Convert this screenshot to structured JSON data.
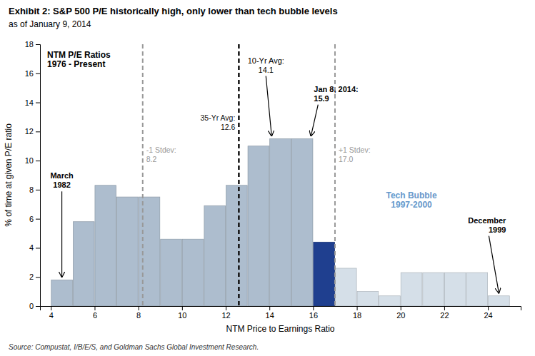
{
  "chart_data": {
    "type": "bar",
    "title": "Exhibit 2: S&P 500 P/E historically high, only lower than tech bubble levels",
    "subtitle": "as of January 9, 2014",
    "source": "Source: Compustat, I/B/E/S, and Goldman Sachs Global Investment Research.",
    "inner_label": "NTM P/E Ratios\n1976 - Present",
    "x_label": "NTM Price to Earnings Ratio",
    "y_label": "% of time at given P/E ratio",
    "x": [
      4.5,
      5.5,
      6.5,
      7.5,
      8.5,
      9.5,
      10.5,
      11.5,
      12.5,
      13.5,
      14.5,
      15.5,
      16.5,
      17.5,
      18.5,
      19.5,
      20.5,
      21.5,
      22.5,
      23.5,
      24.5
    ],
    "values": [
      1.8,
      5.8,
      8.3,
      7.5,
      7.5,
      4.6,
      4.6,
      6.9,
      8.3,
      11.0,
      11.5,
      11.5,
      4.4,
      2.6,
      1.0,
      0.7,
      2.3,
      2.3,
      2.3,
      2.3,
      0.7
    ],
    "colors": [
      "#adbdce",
      "#adbdce",
      "#adbdce",
      "#adbdce",
      "#adbdce",
      "#adbdce",
      "#adbdce",
      "#adbdce",
      "#adbdce",
      "#adbdce",
      "#adbdce",
      "#adbdce",
      "#1f3f8f",
      "#d5dfe8",
      "#d5dfe8",
      "#d5dfe8",
      "#d5dfe8",
      "#d5dfe8",
      "#d5dfe8",
      "#d5dfe8",
      "#d5dfe8"
    ],
    "xlim": [
      3.5,
      25.5
    ],
    "ylim": [
      0,
      18
    ],
    "xticks": [
      4,
      6,
      8,
      10,
      12,
      14,
      16,
      18,
      20,
      22,
      24
    ],
    "yticks": [
      0,
      2,
      4,
      6,
      8,
      10,
      12,
      14,
      16,
      18
    ],
    "grid": false,
    "reference_lines": [
      {
        "value": 12.6,
        "label": "35-Yr Avg:\n12.6",
        "color": "#111111",
        "line_style": "dashed"
      },
      {
        "value": 8.2,
        "label": "-1 Stdev:\n8.2",
        "color": "#999999",
        "line_style": "dashed"
      },
      {
        "value": 17.0,
        "label": "+1 Stdev:\n17.0",
        "color": "#999999",
        "line_style": "dashed"
      }
    ],
    "annotations": [
      {
        "text": "March\n1982",
        "x": 4.5
      },
      {
        "text": "10-Yr Avg:\n14.1",
        "x": 14.1
      },
      {
        "text": "Jan 8, 2014:\n15.9",
        "x": 15.9
      },
      {
        "text": "December\n1999",
        "x": 24.5
      }
    ],
    "region_labels": [
      {
        "text": "Tech Bubble\n1997-2000",
        "x": 20.5,
        "color": "#6699cc"
      }
    ]
  }
}
